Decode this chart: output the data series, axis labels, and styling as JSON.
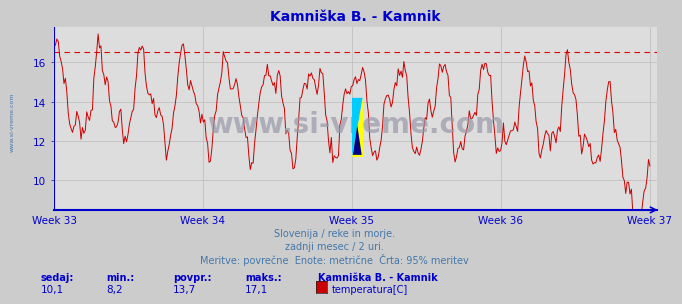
{
  "title": "Kamniška B. - Kamnik",
  "bg_color": "#cccccc",
  "plot_bg_color": "#dddddd",
  "line_color": "#cc0000",
  "dashed_line_color": "#dd0000",
  "dashed_line_value": 16.55,
  "axis_color": "#0000cc",
  "grid_color": "#bbbbbb",
  "text_color": "#4477aa",
  "title_color": "#0000cc",
  "yticks": [
    10,
    12,
    14,
    16
  ],
  "ylim": [
    8.5,
    17.8
  ],
  "week_labels": [
    "Week 33",
    "Week 34",
    "Week 35",
    "Week 36",
    "Week 37"
  ],
  "week_ticks": [
    0,
    84,
    168,
    252,
    336
  ],
  "subtitle1": "Slovenija / reke in morje.",
  "subtitle2": "zadnji mesec / 2 uri.",
  "subtitle3": "Meritve: povrečne  Enote: metrične  Črta: 95% meritev",
  "stat_labels": [
    "sedaj:",
    "min.:",
    "povpr.:",
    "maks.:"
  ],
  "stat_values": [
    "10,1",
    "8,2",
    "13,7",
    "17,1"
  ],
  "legend_label": "Kamniška B. - Kamnik",
  "series_label": "temperatura[C]",
  "legend_color": "#cc0000",
  "watermark": "www.si-vreme.com",
  "watermark_color": "#9999aa",
  "ylabel_text": "www.si-vreme.com"
}
